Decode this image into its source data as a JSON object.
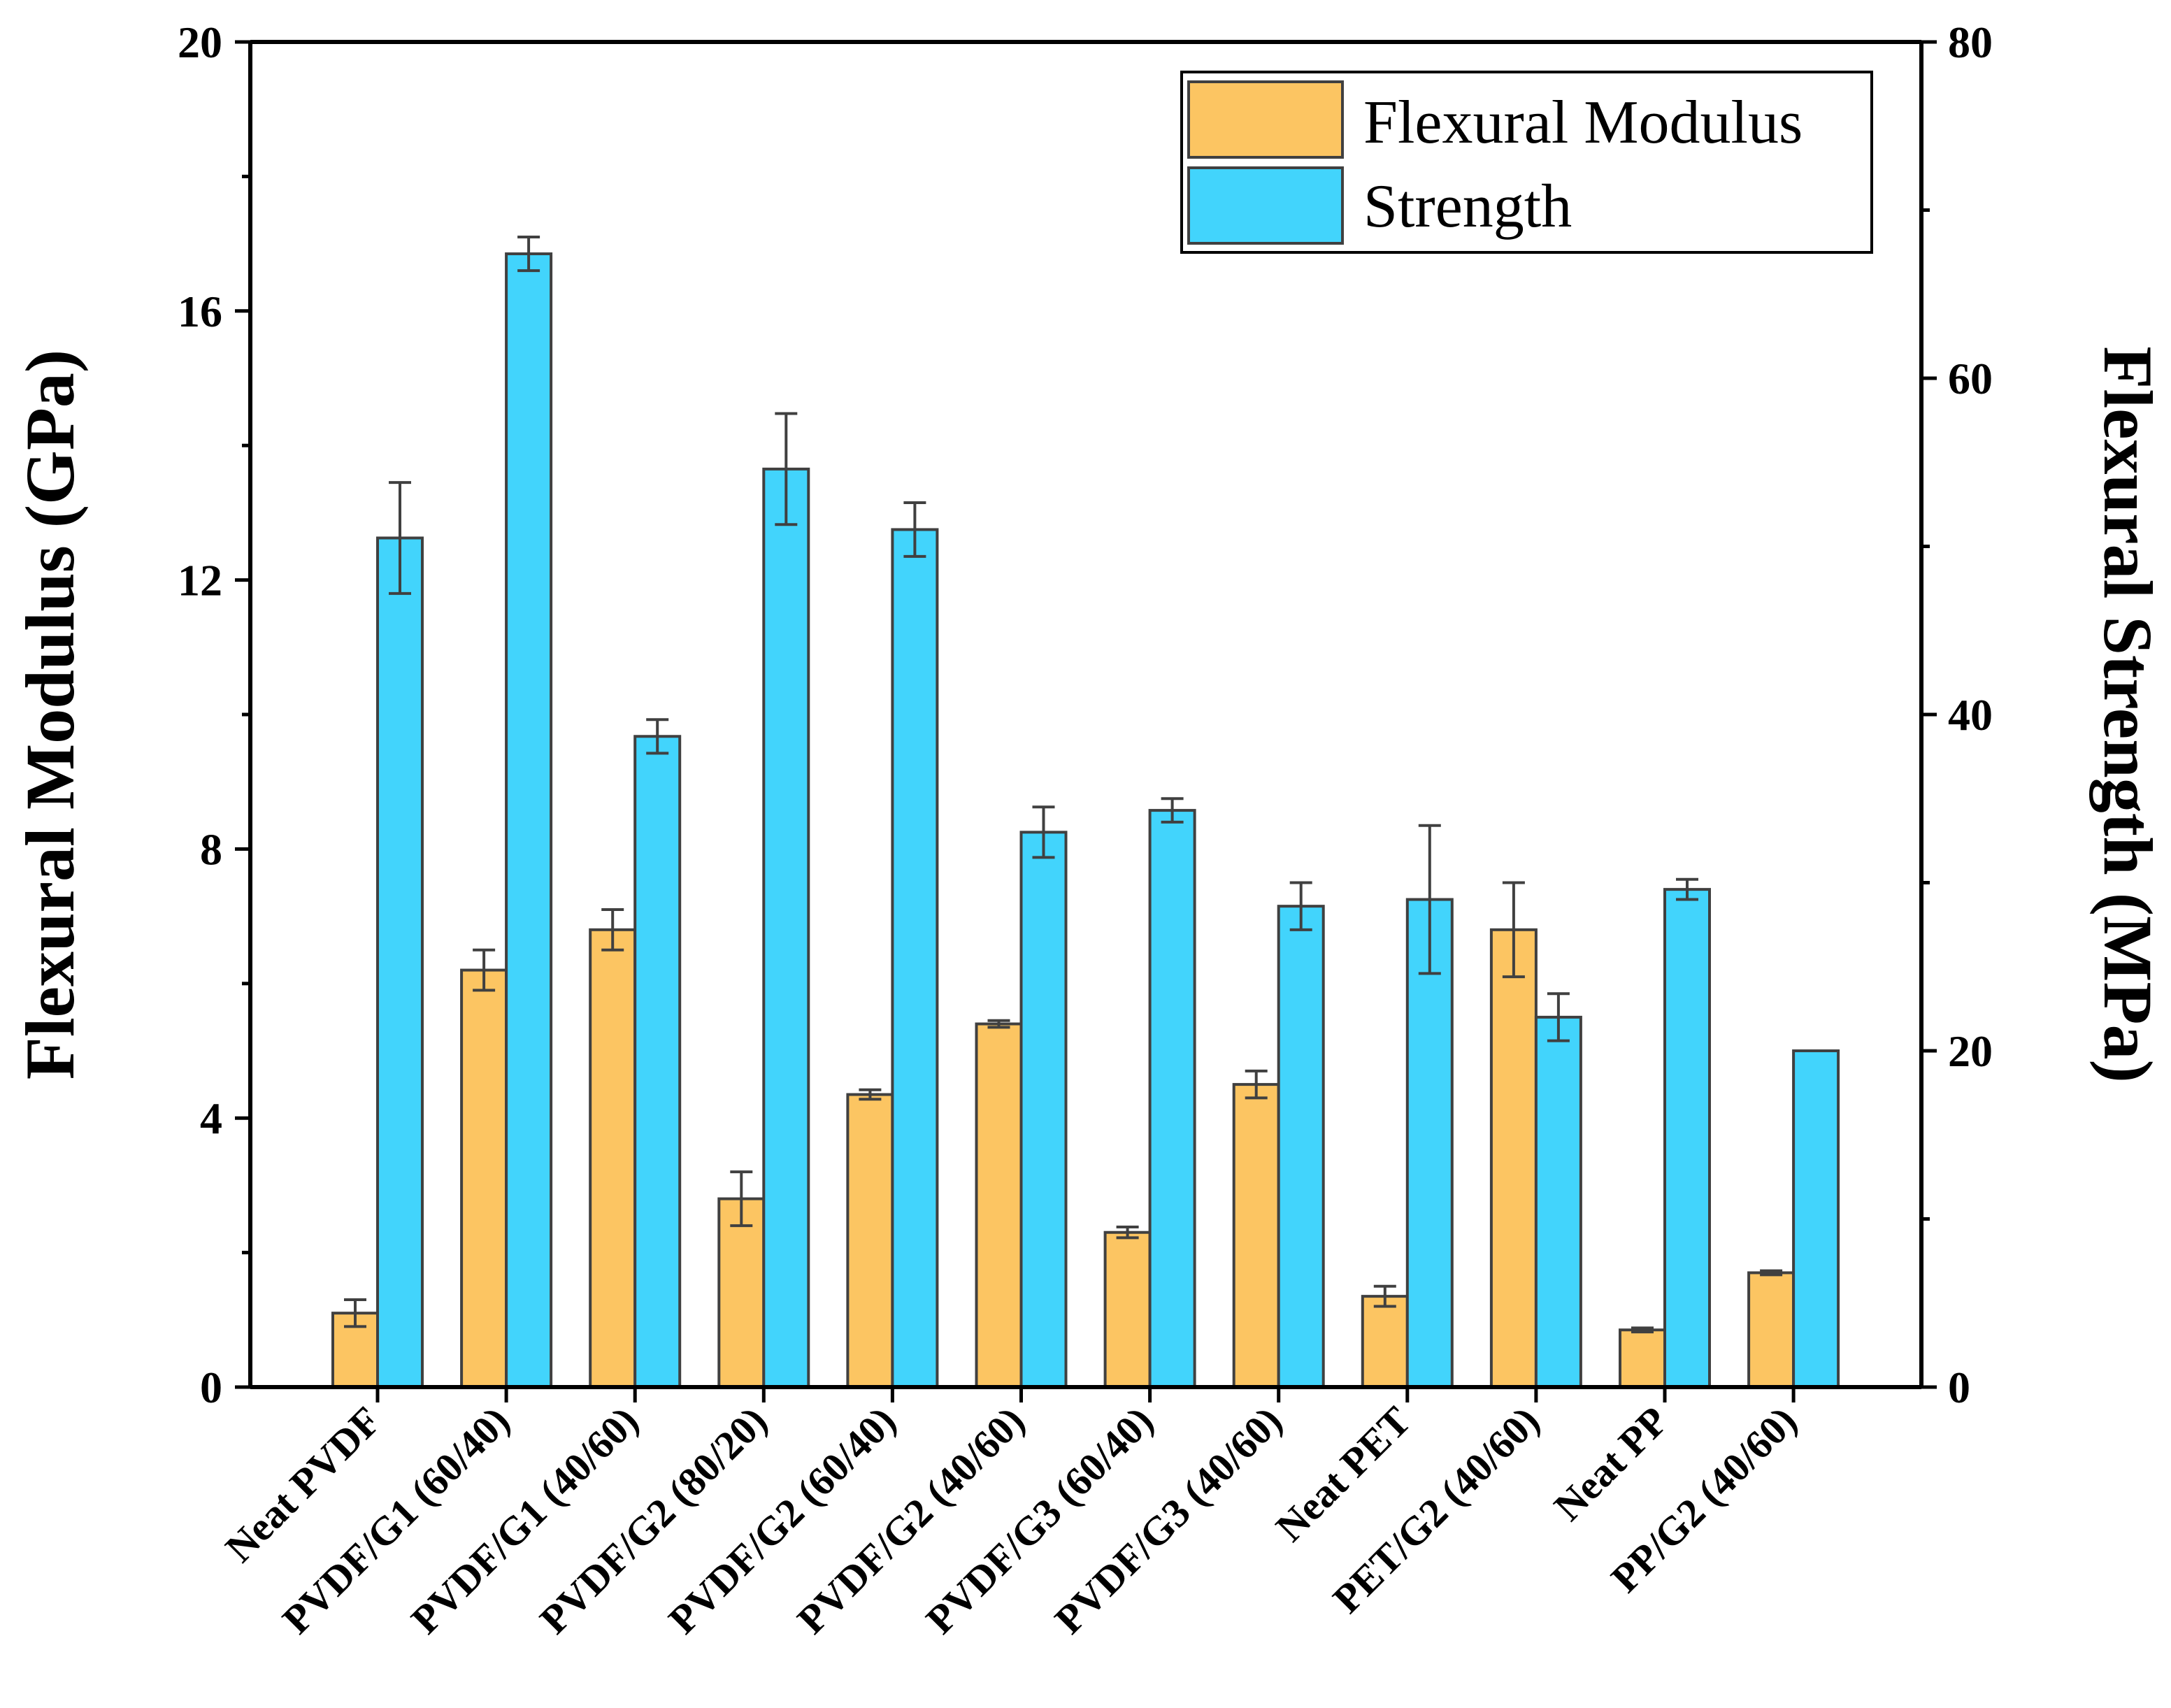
{
  "chart_data": {
    "type": "bar",
    "title": "",
    "xlabel": "",
    "categories": [
      "Neat PVDF",
      "PVDF/G1 (60/40)",
      "PVDF/G1 (40/60)",
      "PVDF/G2 (80/20)",
      "PVDF/G2 (60/40)",
      "PVDF/G2 (40/60)",
      "PVDF/G3 (60/40)",
      "PVDF/G3 (40/60)",
      "Neat PET",
      "PET/G2 (40/60)",
      "Neat PP",
      "PP/G2 (40/60)"
    ],
    "left_axis": {
      "label": "Flexural Modulus (GPa)",
      "ylim": [
        0,
        20
      ],
      "ticks": [
        "0",
        "4",
        "8",
        "12",
        "16",
        "20"
      ]
    },
    "right_axis": {
      "label": "Flexural Strength (MPa)",
      "ylim": [
        0,
        80
      ],
      "ticks": [
        "0",
        "20",
        "40",
        "60",
        "80"
      ]
    },
    "series": [
      {
        "name": "Flexural Modulus",
        "axis": "left",
        "color": "#FCC562",
        "values": [
          1.1,
          6.2,
          6.8,
          2.8,
          4.35,
          5.4,
          2.3,
          4.5,
          1.35,
          6.8,
          0.85,
          1.7
        ],
        "errors": [
          0.2,
          0.3,
          0.3,
          0.4,
          0.07,
          0.05,
          0.08,
          0.2,
          0.15,
          0.7,
          0.03,
          0.03
        ]
      },
      {
        "name": "Strength",
        "axis": "right",
        "color": "#42D4FC",
        "values": [
          50.5,
          67.4,
          38.7,
          54.6,
          51.0,
          33.0,
          34.3,
          28.6,
          29.0,
          22.0,
          29.6,
          20.0
        ],
        "errors": [
          3.3,
          1.0,
          1.0,
          3.3,
          1.6,
          1.5,
          0.7,
          1.4,
          4.4,
          1.4,
          0.6,
          0.0
        ]
      }
    ],
    "legend": {
      "position": "top-right",
      "entries": [
        "Flexural Modulus",
        "Strength"
      ]
    }
  }
}
